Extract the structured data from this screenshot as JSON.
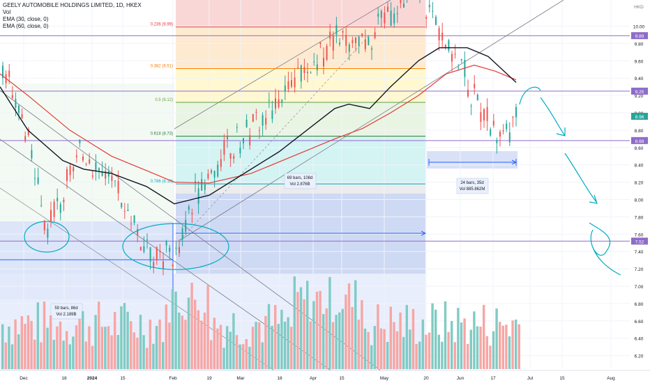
{
  "legend": {
    "symbol": "GEELY AUTOMOBILE HOLDINGS LIMITED, 1D, HKEX",
    "vol": "Vol",
    "ema30": "EMA (30, close, 0)",
    "ema60": "EMA (60, close, 0)"
  },
  "currency": "HKD",
  "chart_data": {
    "type": "candlestick",
    "y_ticks": [
      "10.00",
      "9.80",
      "9.60",
      "9.40",
      "9.20",
      "9.00",
      "8.80",
      "8.60",
      "8.40",
      "8.20",
      "8.00",
      "7.80",
      "7.60",
      "7.40",
      "7.20",
      "7.00",
      "6.80",
      "6.60",
      "6.40",
      "6.20"
    ],
    "x_ticks": [
      "Dec",
      "18",
      "2024",
      "15",
      "Feb",
      "19",
      "Mar",
      "18",
      "Apr",
      "15",
      "May",
      "20",
      "Jun",
      "17",
      "Jul",
      "15",
      "Aug"
    ],
    "horizontal_levels": [
      {
        "label": "9.89",
        "value": 9.89
      },
      {
        "label": "9.25",
        "value": 9.25
      },
      {
        "label": "8.68",
        "value": 8.68
      },
      {
        "label": "7.52",
        "value": 7.52
      }
    ],
    "last_price": {
      "label": "8.96",
      "value": 8.96
    },
    "fib_levels": [
      {
        "label": "0.236 (9.99)",
        "value": 9.99
      },
      {
        "label": "0.382 (9.51)",
        "value": 9.51
      },
      {
        "label": "0.5 (9.12)",
        "value": 9.12
      },
      {
        "label": "0.618 (8.73)",
        "value": 8.73
      },
      {
        "label": "0.786 (8.18)",
        "value": 8.18
      }
    ],
    "measure_labels": [
      {
        "line1": "59 bars, 86d",
        "line2": "Vol 2.189B"
      },
      {
        "line1": "69 bars, 108d",
        "line2": "Vol 2.876B"
      },
      {
        "line1": "24 bars, 35d",
        "line2": "Vol 885.862M"
      }
    ],
    "series": [
      {
        "name": "EMA (30, close, 0)",
        "color": "#131722"
      },
      {
        "name": "EMA (60, close, 0)",
        "color": "#e53935"
      }
    ],
    "colors": {
      "up": "#26a69a",
      "down": "#ef5350",
      "vol_up": "#80cbc4",
      "vol_down": "#f7a6a4"
    },
    "ema_note": "EMA lines drawn as smoothed series"
  }
}
